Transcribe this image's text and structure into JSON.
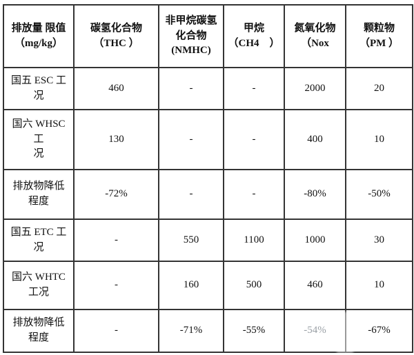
{
  "table": {
    "headers": [
      {
        "label": "排放量 限值\n（mg/kg）"
      },
      {
        "label": "碳氢化合物\n（THC ）"
      },
      {
        "label": "非甲烷碳氢\n化合物\n(NMHC)"
      },
      {
        "label": "甲烷\n（CH4　）"
      },
      {
        "label": "氮氧化物\n（Nox"
      },
      {
        "label": "颗粒物\n（PM ）"
      }
    ],
    "rows": [
      {
        "label": "国五 ESC 工\n况",
        "values": [
          "460",
          "-",
          "-",
          "2000",
          "20"
        ]
      },
      {
        "label": "国六 WHSC\n工\n况",
        "values": [
          "130",
          "-",
          "-",
          "400",
          "10"
        ]
      },
      {
        "label": "排放物降低\n程度",
        "values": [
          "-72%",
          "-",
          "-",
          "-80%",
          "-50%"
        ]
      },
      {
        "label": "国五 ETC 工\n况",
        "values": [
          "-",
          "550",
          "1100",
          "1000",
          "30"
        ]
      },
      {
        "label": "国六 WHTC\n工况",
        "values": [
          "-",
          "160",
          "500",
          "460",
          "10"
        ]
      },
      {
        "label": "排放物降低\n程度",
        "values": [
          "-",
          "-71%",
          "-55%",
          "-54%",
          "-67%"
        ]
      }
    ]
  },
  "colors": {
    "background": "#ffffff",
    "text": "#111111",
    "border": "#333333",
    "muted_text": "#9aa0a6"
  }
}
